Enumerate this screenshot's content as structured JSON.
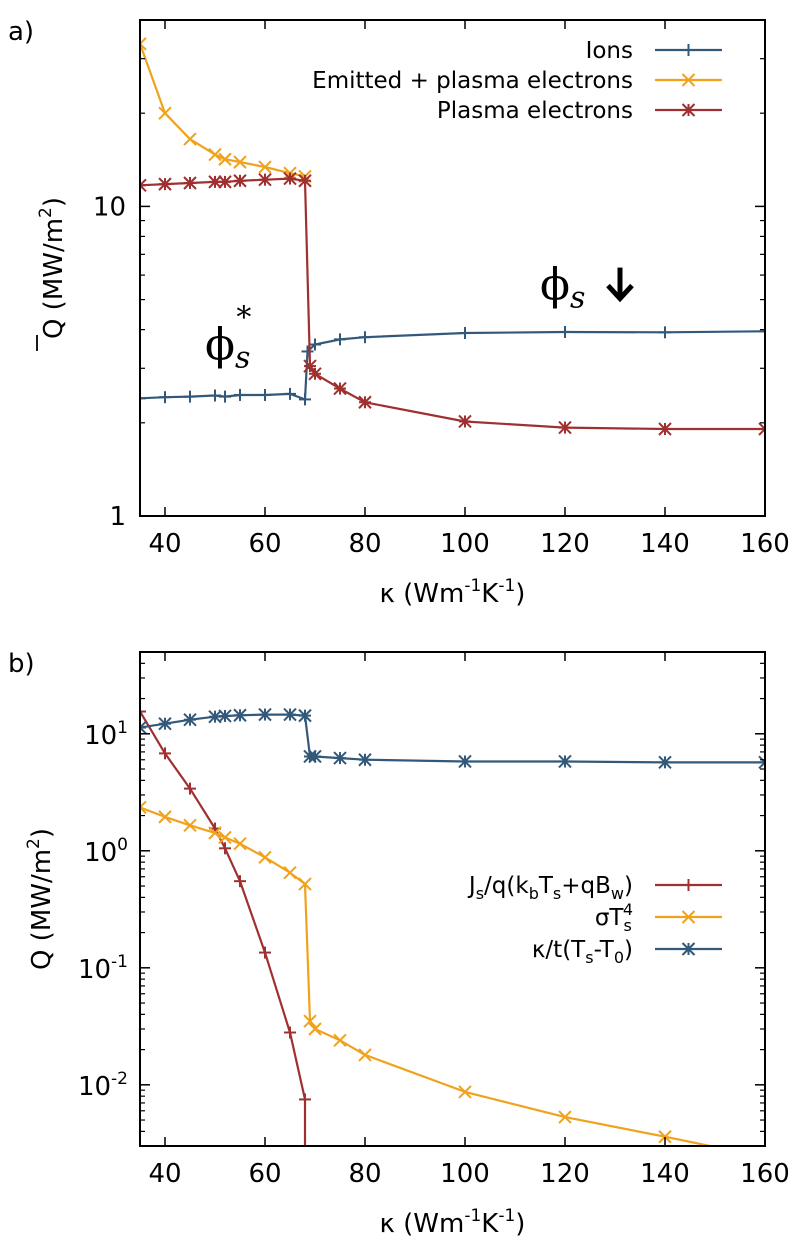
{
  "figure": {
    "panels": [
      {
        "panel_label": "a)"
      },
      {
        "panel_label": "b)"
      }
    ]
  },
  "chart_data": [
    {
      "type": "line",
      "panel_label": "a)",
      "xlabel": "κ (Wm⁻¹K⁻¹)",
      "ylabel": "Q̄ (MW/m²)",
      "xlim": [
        35,
        160
      ],
      "ylim": [
        1,
        40
      ],
      "yscale": "log",
      "xticks": [
        40,
        60,
        80,
        100,
        120,
        140,
        160
      ],
      "yticks": [
        {
          "value": 1,
          "label": "1"
        },
        {
          "value": 10,
          "label": "10"
        }
      ],
      "grid": false,
      "legend_position": "top-right",
      "annotations": [
        {
          "text": "ϕs*",
          "x": 48,
          "y": 3.2
        },
        {
          "text": "ϕs ↓",
          "x": 115,
          "y": 5.0
        }
      ],
      "series": [
        {
          "name": "Ions",
          "color": "#33597a",
          "marker": "plus",
          "x": [
            35,
            40,
            45,
            50,
            52,
            55,
            60,
            65,
            68,
            68.5,
            70,
            75,
            80,
            100,
            120,
            140,
            160
          ],
          "y": [
            2.4,
            2.42,
            2.43,
            2.45,
            2.43,
            2.46,
            2.46,
            2.48,
            2.38,
            3.4,
            3.58,
            3.72,
            3.78,
            3.9,
            3.93,
            3.92,
            3.95
          ]
        },
        {
          "name": "Emitted + plasma electrons",
          "color": "#f0a21c",
          "marker": "x",
          "x": [
            35,
            40,
            45,
            50,
            52,
            55,
            60,
            65,
            68
          ],
          "y": [
            33.5,
            20.0,
            16.5,
            14.7,
            14.2,
            13.9,
            13.4,
            12.8,
            12.5
          ]
        },
        {
          "name": "Plasma electrons",
          "color": "#a03030",
          "marker": "star",
          "x": [
            35,
            40,
            45,
            50,
            52,
            55,
            60,
            65,
            68,
            69,
            70,
            75,
            80,
            100,
            120,
            140,
            160
          ],
          "y": [
            11.7,
            11.8,
            11.9,
            12.0,
            12.0,
            12.1,
            12.2,
            12.3,
            12.1,
            3.05,
            2.88,
            2.58,
            2.33,
            2.02,
            1.93,
            1.91,
            1.91
          ]
        }
      ]
    },
    {
      "type": "line",
      "panel_label": "b)",
      "xlabel": "κ (Wm⁻¹K⁻¹)",
      "ylabel": "Q (MW/m²)",
      "xlim": [
        35,
        160
      ],
      "ylim": [
        0.003,
        50
      ],
      "yscale": "log",
      "xticks": [
        40,
        60,
        80,
        100,
        120,
        140,
        160
      ],
      "yticks": [
        {
          "value": 0.01,
          "base": "10",
          "exp": "-2"
        },
        {
          "value": 0.1,
          "base": "10",
          "exp": "-1"
        },
        {
          "value": 1,
          "base": "10",
          "exp": "0"
        },
        {
          "value": 10,
          "base": "10",
          "exp": "1"
        }
      ],
      "grid": false,
      "legend_position": "middle-right",
      "series": [
        {
          "name": "Js/q(kbTs+qBw)",
          "color": "#a03030",
          "marker": "plus",
          "x": [
            35,
            40,
            45,
            50,
            52,
            55,
            60,
            65,
            68,
            68
          ],
          "y": [
            15.5,
            6.8,
            3.4,
            1.55,
            1.05,
            0.55,
            0.135,
            0.028,
            0.0075,
            0.003
          ]
        },
        {
          "name": "σTs⁴",
          "color": "#f0a21c",
          "marker": "x",
          "x": [
            35,
            40,
            45,
            50,
            52,
            55,
            60,
            65,
            68,
            69,
            70,
            75,
            80,
            100,
            120,
            140,
            160
          ],
          "y": [
            2.35,
            1.95,
            1.65,
            1.42,
            1.3,
            1.15,
            0.88,
            0.65,
            0.52,
            0.035,
            0.03,
            0.024,
            0.018,
            0.0087,
            0.0053,
            0.0036,
            0.0024
          ]
        },
        {
          "name": "κ/t(Ts-T0)",
          "color": "#33597a",
          "marker": "star",
          "x": [
            35,
            40,
            45,
            50,
            52,
            55,
            60,
            65,
            68,
            69,
            70,
            75,
            80,
            100,
            120,
            140,
            160
          ],
          "y": [
            11.3,
            12.2,
            13.2,
            14.0,
            14.2,
            14.4,
            14.6,
            14.6,
            14.3,
            6.4,
            6.4,
            6.2,
            6.0,
            5.8,
            5.8,
            5.7,
            5.7
          ]
        }
      ]
    }
  ]
}
